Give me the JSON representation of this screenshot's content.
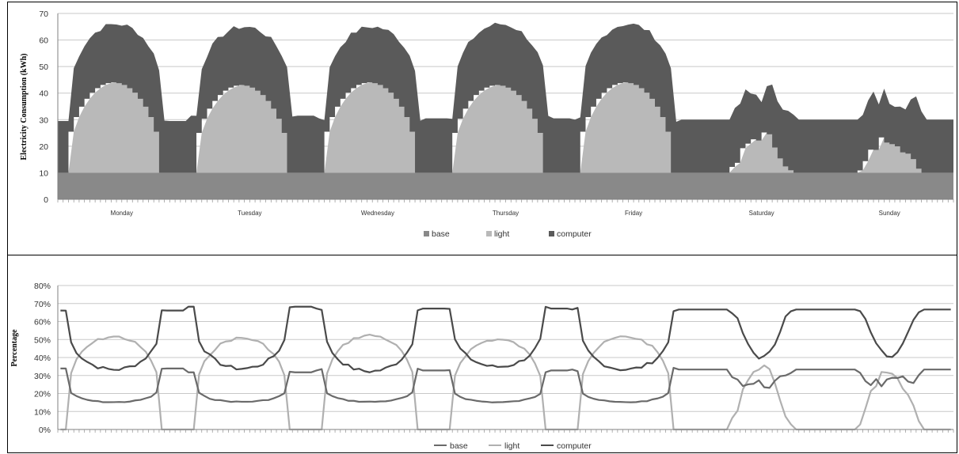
{
  "chart_data": [
    {
      "type": "area",
      "stacked": true,
      "title": "",
      "xlabel": "",
      "ylabel": "Electricity Consumption (kWh)",
      "ylim": [
        0,
        70
      ],
      "yticks": [
        "0",
        "10",
        "20",
        "30",
        "40",
        "50",
        "60",
        "70"
      ],
      "categories": [
        "Monday",
        "Tuesday",
        "Wednesday",
        "Thursday",
        "Friday",
        "Saturday",
        "Sunday"
      ],
      "legend": [
        "base",
        "light",
        "computer"
      ],
      "legend_position": "bottom",
      "grid": true,
      "colors": {
        "base": "#898989",
        "light": "#b9b9b9",
        "computer": "#5a5a5a"
      },
      "series": [
        {
          "name": "base",
          "values": [
            10,
            10,
            10,
            10,
            10,
            10,
            10
          ]
        },
        {
          "name": "light",
          "values": [
            44,
            43,
            44,
            43,
            44,
            24,
            23
          ]
        },
        {
          "name": "computer",
          "values": [
            66,
            65,
            65,
            66,
            66,
            44,
            43
          ]
        }
      ],
      "off_hours_total": [
        29.5,
        31.5,
        30.5,
        30.5,
        30,
        30,
        30
      ]
    },
    {
      "type": "line",
      "title": "",
      "xlabel": "",
      "ylabel": "Percentage",
      "ylim": [
        0,
        80
      ],
      "yticks": [
        "0%",
        "10%",
        "20%",
        "30%",
        "40%",
        "50%",
        "60%",
        "70%",
        "80%"
      ],
      "categories": [
        "Monday",
        "Tuesday",
        "Wednesday",
        "Thursday",
        "Friday",
        "Saturday",
        "Sunday"
      ],
      "legend": [
        "base",
        "light",
        "computer"
      ],
      "legend_position": "bottom",
      "grid": true,
      "colors": {
        "base": "#6a6a6a",
        "light": "#b0b0b0",
        "computer": "#4a4a4a"
      },
      "series": [
        {
          "name": "base",
          "values": [
            16,
            16,
            16,
            16,
            16,
            23,
            24
          ]
        },
        {
          "name": "light",
          "values": [
            52,
            52,
            53,
            52,
            52,
            25,
            30
          ]
        },
        {
          "name": "computer",
          "values": [
            32,
            32,
            31,
            32,
            32,
            52,
            47
          ]
        }
      ],
      "off_hours_percent": {
        "base": [
          34,
          32,
          33,
          32,
          33,
          33,
          33
        ],
        "light": [
          0,
          0,
          0,
          0,
          0,
          0,
          0
        ],
        "computer": [
          66,
          68,
          67,
          67,
          67,
          67,
          67
        ]
      }
    }
  ]
}
